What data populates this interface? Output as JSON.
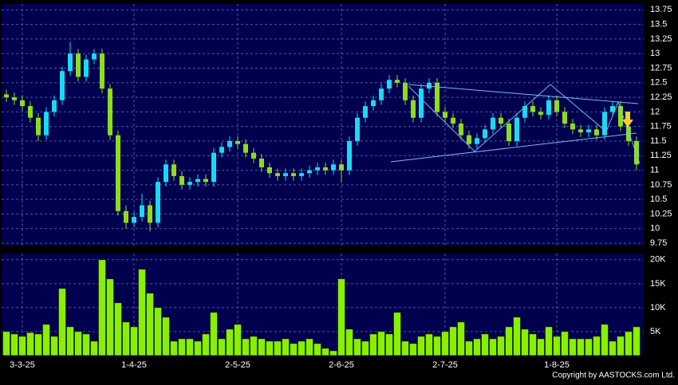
{
  "chart_data": [
    {
      "type": "candlestick",
      "categories": [
        null,
        null,
        "3-3-25",
        null,
        null,
        null,
        null,
        null,
        null,
        null,
        null,
        null,
        null,
        null,
        null,
        null,
        "1-4-25",
        null,
        null,
        null,
        null,
        null,
        null,
        null,
        null,
        null,
        null,
        null,
        null,
        "2-5-25",
        null,
        null,
        null,
        null,
        null,
        null,
        null,
        null,
        null,
        null,
        null,
        null,
        "2-6-25",
        null,
        null,
        null,
        null,
        null,
        null,
        null,
        null,
        null,
        null,
        null,
        null,
        "2-7-25",
        null,
        null,
        null,
        null,
        null,
        null,
        null,
        null,
        null,
        null,
        null,
        null,
        null,
        "1-8-25",
        null,
        null,
        null,
        null,
        null,
        null,
        null,
        null,
        null,
        null
      ],
      "open": [
        12.3,
        12.25,
        12.2,
        12.1,
        11.9,
        11.6,
        12.0,
        12.2,
        12.7,
        13.0,
        12.6,
        12.9,
        13.0,
        12.4,
        11.6,
        10.3,
        10.1,
        10.2,
        10.4,
        10.1,
        10.8,
        11.1,
        10.9,
        10.75,
        10.8,
        10.85,
        10.8,
        11.3,
        11.4,
        11.5,
        11.45,
        11.3,
        11.2,
        11.05,
        10.95,
        10.9,
        10.95,
        10.9,
        10.95,
        11.0,
        11.05,
        11.0,
        11.1,
        11.0,
        11.5,
        11.9,
        12.1,
        12.2,
        12.4,
        12.55,
        12.5,
        12.2,
        11.9,
        12.4,
        12.5,
        12.0,
        11.9,
        11.8,
        11.6,
        11.45,
        11.55,
        11.7,
        11.9,
        11.8,
        11.5,
        11.9,
        12.1,
        12.0,
        11.95,
        12.2,
        12.0,
        11.8,
        11.7,
        11.65,
        11.7,
        11.6,
        12.0,
        12.1,
        11.75,
        11.5
      ],
      "high": [
        12.38,
        12.33,
        12.28,
        12.18,
        11.98,
        12.08,
        12.28,
        12.78,
        13.2,
        13.08,
        12.98,
        13.08,
        13.08,
        12.48,
        11.68,
        10.4,
        10.28,
        10.6,
        10.48,
        10.88,
        11.18,
        11.18,
        10.98,
        10.88,
        10.93,
        10.93,
        11.38,
        11.48,
        11.58,
        11.58,
        11.53,
        11.38,
        11.28,
        11.13,
        11.03,
        11.03,
        11.03,
        11.03,
        11.08,
        11.13,
        11.13,
        11.18,
        11.18,
        11.58,
        11.98,
        12.18,
        12.28,
        12.48,
        12.63,
        12.63,
        12.58,
        12.28,
        12.48,
        12.58,
        12.58,
        12.08,
        11.98,
        11.88,
        11.68,
        11.63,
        11.78,
        11.98,
        11.98,
        11.88,
        11.98,
        12.18,
        12.18,
        12.08,
        12.28,
        12.28,
        12.08,
        11.88,
        11.78,
        11.78,
        11.78,
        12.08,
        12.18,
        12.18,
        11.83,
        11.58
      ],
      "low": [
        12.17,
        12.12,
        12.02,
        11.82,
        11.5,
        11.52,
        11.92,
        12.12,
        12.62,
        12.52,
        12.52,
        12.82,
        12.32,
        11.52,
        10.22,
        10.0,
        10.02,
        10.12,
        9.95,
        10.02,
        10.72,
        10.82,
        10.67,
        10.67,
        10.72,
        10.72,
        10.72,
        11.22,
        11.32,
        11.37,
        11.22,
        11.12,
        10.97,
        10.87,
        10.82,
        10.82,
        10.82,
        10.82,
        10.87,
        10.92,
        10.92,
        10.92,
        10.8,
        10.92,
        11.42,
        11.82,
        12.02,
        12.12,
        12.32,
        12.42,
        12.12,
        11.82,
        11.82,
        12.32,
        11.92,
        11.82,
        11.72,
        11.52,
        11.37,
        11.37,
        11.47,
        11.62,
        11.72,
        11.42,
        11.42,
        11.82,
        11.92,
        11.87,
        11.87,
        11.92,
        11.72,
        11.62,
        11.57,
        11.57,
        11.52,
        11.52,
        11.92,
        11.67,
        11.42,
        11.0
      ],
      "close": [
        12.25,
        12.2,
        12.1,
        11.9,
        11.6,
        12.0,
        12.2,
        12.7,
        13.0,
        12.6,
        12.9,
        13.0,
        12.4,
        11.6,
        10.3,
        10.1,
        10.2,
        10.4,
        10.1,
        10.8,
        11.1,
        10.9,
        10.75,
        10.8,
        10.85,
        10.8,
        11.3,
        11.4,
        11.5,
        11.45,
        11.3,
        11.2,
        11.05,
        10.95,
        10.9,
        10.95,
        10.9,
        10.95,
        11.0,
        11.05,
        11.0,
        11.1,
        11.0,
        11.5,
        11.9,
        12.1,
        12.2,
        12.4,
        12.55,
        12.5,
        12.2,
        11.9,
        12.4,
        12.5,
        12.0,
        11.9,
        11.8,
        11.6,
        11.45,
        11.55,
        11.7,
        11.9,
        11.8,
        11.5,
        11.9,
        12.1,
        12.0,
        11.95,
        12.2,
        12.0,
        11.8,
        11.7,
        11.65,
        11.7,
        11.6,
        12.0,
        12.1,
        11.75,
        11.5,
        11.1
      ],
      "up_color": "#19d9f5",
      "down_color": "#8fdc1e",
      "ylim": [
        9.71,
        13.85
      ],
      "yticks": [
        9.75,
        10,
        10.25,
        10.5,
        10.75,
        11,
        11.25,
        11.5,
        11.75,
        12,
        12.25,
        12.5,
        12.75,
        13,
        13.25,
        13.5,
        13.75
      ],
      "grid": true
    },
    {
      "type": "bar",
      "values": [
        5000,
        4500,
        4000,
        4800,
        4500,
        6500,
        4000,
        14000,
        6000,
        5000,
        4500,
        3000,
        20000,
        16000,
        11000,
        7000,
        6000,
        18000,
        13000,
        10000,
        8000,
        3000,
        3500,
        3500,
        3000,
        4500,
        9000,
        3500,
        5500,
        6500,
        3500,
        4000,
        3500,
        3000,
        3000,
        3500,
        2500,
        3000,
        3500,
        2500,
        1500,
        1000,
        16000,
        5500,
        3500,
        3000,
        4500,
        5000,
        4500,
        9000,
        3000,
        2500,
        4000,
        4500,
        4000,
        5000,
        6000,
        7000,
        3000,
        3500,
        4500,
        3500,
        4000,
        6000,
        8000,
        5500,
        4500,
        3500,
        6000,
        4000,
        5000,
        3500,
        3500,
        3500,
        4000,
        6500,
        3000,
        4000,
        5000,
        6000
      ],
      "color": "#88f000",
      "ylim": [
        0,
        21300
      ],
      "yticks": [
        {
          "value": 5000,
          "label": "5K"
        },
        {
          "value": 10000,
          "label": "10K"
        },
        {
          "value": 15000,
          "label": "15K"
        },
        {
          "value": 20000,
          "label": "20K"
        }
      ],
      "grid": true
    }
  ],
  "footer": "Copyright by AASTOCKS.com Ltd."
}
